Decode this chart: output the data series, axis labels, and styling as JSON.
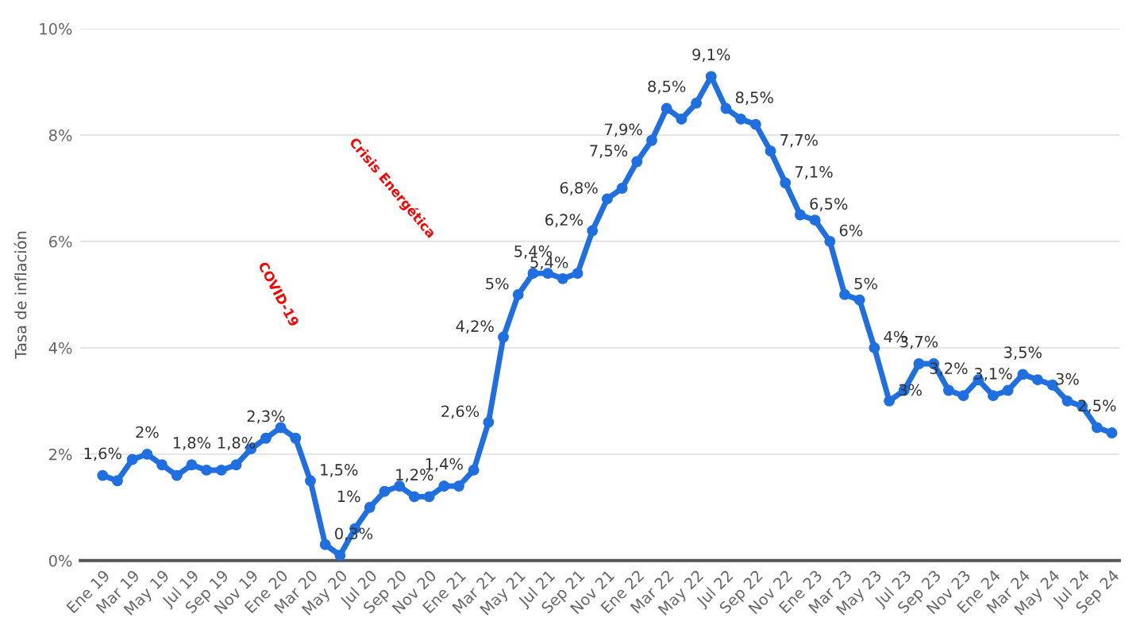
{
  "chart_data": {
    "type": "line",
    "ylabel": "Tasa de inflación",
    "categories": [
      "Ene 19",
      null,
      "Mar 19",
      null,
      "May 19",
      null,
      "Jul 19",
      null,
      "Sep 19",
      null,
      "Nov 19",
      null,
      "Ene 20",
      null,
      "Mar 20",
      null,
      "May 20",
      null,
      "Jul 20",
      null,
      "Sep 20",
      null,
      "Nov 20",
      null,
      "Ene 21",
      null,
      "Mar 21",
      null,
      "May 21",
      null,
      "Jul 21",
      null,
      "Sep 21",
      null,
      "Nov 21",
      null,
      "Ene 22",
      null,
      "Mar 22",
      null,
      "May 22",
      null,
      "Jul 22",
      null,
      "Sep 22",
      null,
      "Nov 22",
      null,
      "Ene 23",
      null,
      "Mar 23",
      null,
      "May 23",
      null,
      "Jul 23",
      null,
      "Sep 23",
      null,
      "Nov 23",
      null,
      "Ene 24",
      null,
      "Mar 24",
      null,
      "May 24",
      null,
      "Jul 24",
      null,
      "Sep 24"
    ],
    "series": [
      {
        "color": "#1f6fe0",
        "values": [
          1.6,
          1.5,
          1.9,
          2.0,
          1.8,
          1.6,
          1.8,
          1.7,
          1.7,
          1.8,
          2.1,
          2.3,
          2.5,
          2.3,
          1.5,
          0.3,
          0.1,
          0.6,
          1.0,
          1.3,
          1.4,
          1.2,
          1.2,
          1.4,
          1.4,
          1.7,
          2.6,
          4.2,
          5.0,
          5.4,
          5.4,
          5.3,
          5.4,
          6.2,
          6.8,
          7.0,
          7.5,
          7.9,
          8.5,
          8.3,
          8.6,
          9.1,
          8.5,
          8.3,
          8.2,
          7.7,
          7.1,
          6.5,
          6.4,
          6.0,
          5.0,
          4.9,
          4.0,
          3.0,
          3.2,
          3.7,
          3.7,
          3.2,
          3.1,
          3.4,
          3.1,
          3.2,
          3.5,
          3.4,
          3.3,
          3.0,
          2.9,
          2.5,
          2.4
        ],
        "value_labels": [
          "1,6%",
          null,
          null,
          "2%",
          null,
          null,
          "1,8%",
          null,
          null,
          "1,8%",
          null,
          "2,3%",
          null,
          null,
          "1,5%",
          "0,3%",
          null,
          null,
          "1%",
          null,
          null,
          "1,2%",
          null,
          "1,4%",
          null,
          null,
          "2,6%",
          "4,2%",
          "5%",
          "5,4%",
          null,
          null,
          "5,4%",
          "6,2%",
          "6,8%",
          null,
          "7,5%",
          "7,9%",
          "8,5%",
          null,
          null,
          "9,1%",
          "8,5%",
          null,
          null,
          "7,7%",
          "7,1%",
          "6,5%",
          null,
          "6%",
          "5%",
          null,
          "4%",
          "3%",
          null,
          "3,7%",
          null,
          "3,2%",
          null,
          null,
          "3,1%",
          null,
          "3,5%",
          null,
          null,
          "3%",
          null,
          "2,5%",
          null
        ]
      }
    ],
    "ylim": [
      0,
      10
    ],
    "yticks": [
      {
        "value": 0,
        "label": "0%"
      },
      {
        "value": 2,
        "label": "2%"
      },
      {
        "value": 4,
        "label": "4%"
      },
      {
        "value": 6,
        "label": "6%"
      },
      {
        "value": 8,
        "label": "8%"
      },
      {
        "value": 10,
        "label": "10%"
      }
    ],
    "grid": "y",
    "marker": "circle",
    "line_style": "solid",
    "annotations": [
      "COVID-19",
      "Crisis Energética"
    ]
  }
}
